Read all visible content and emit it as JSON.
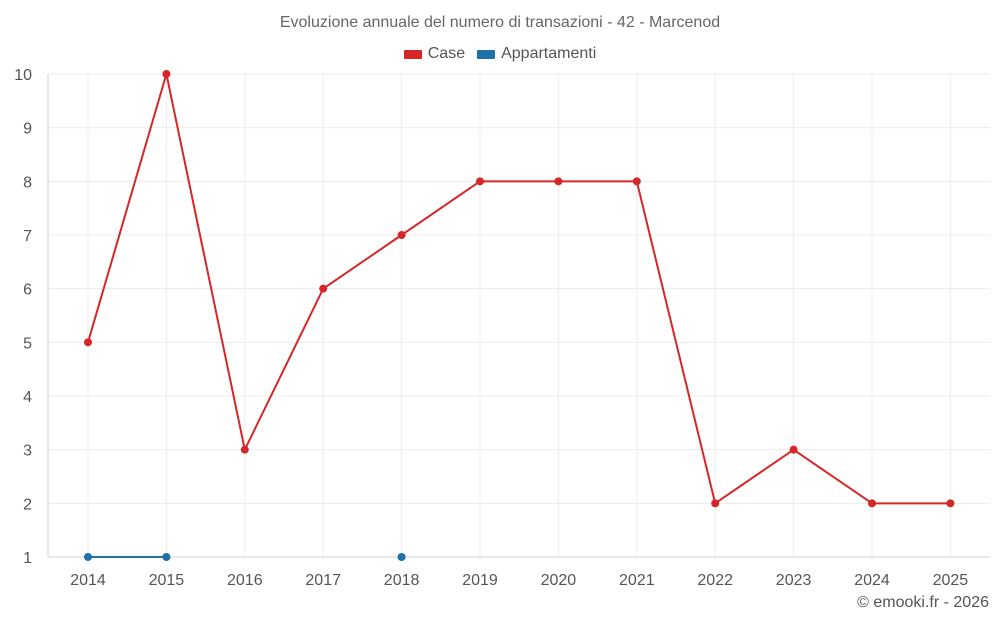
{
  "title": "Evoluzione annuale del numero di transazioni - 42 - Marcenod",
  "credit": "© emooki.fr - 2026",
  "chart_data": {
    "type": "line",
    "title": "Evoluzione annuale del numero di transazioni - 42 - Marcenod",
    "x": [
      "2014",
      "2015",
      "2016",
      "2017",
      "2018",
      "2019",
      "2020",
      "2021",
      "2022",
      "2023",
      "2024",
      "2025"
    ],
    "ylim": [
      1,
      10
    ],
    "yticks": [
      1,
      2,
      3,
      4,
      5,
      6,
      7,
      8,
      9,
      10
    ],
    "grid": true,
    "legend_position": "top-center",
    "series": [
      {
        "name": "Case",
        "color": "#d62728",
        "values": [
          5,
          10,
          3,
          6,
          7,
          8,
          8,
          8,
          2,
          3,
          2,
          2
        ]
      },
      {
        "name": "Appartamenti",
        "color": "#1f6fa8",
        "values": [
          1,
          1,
          null,
          null,
          1,
          null,
          null,
          null,
          null,
          null,
          null,
          null
        ]
      }
    ]
  }
}
